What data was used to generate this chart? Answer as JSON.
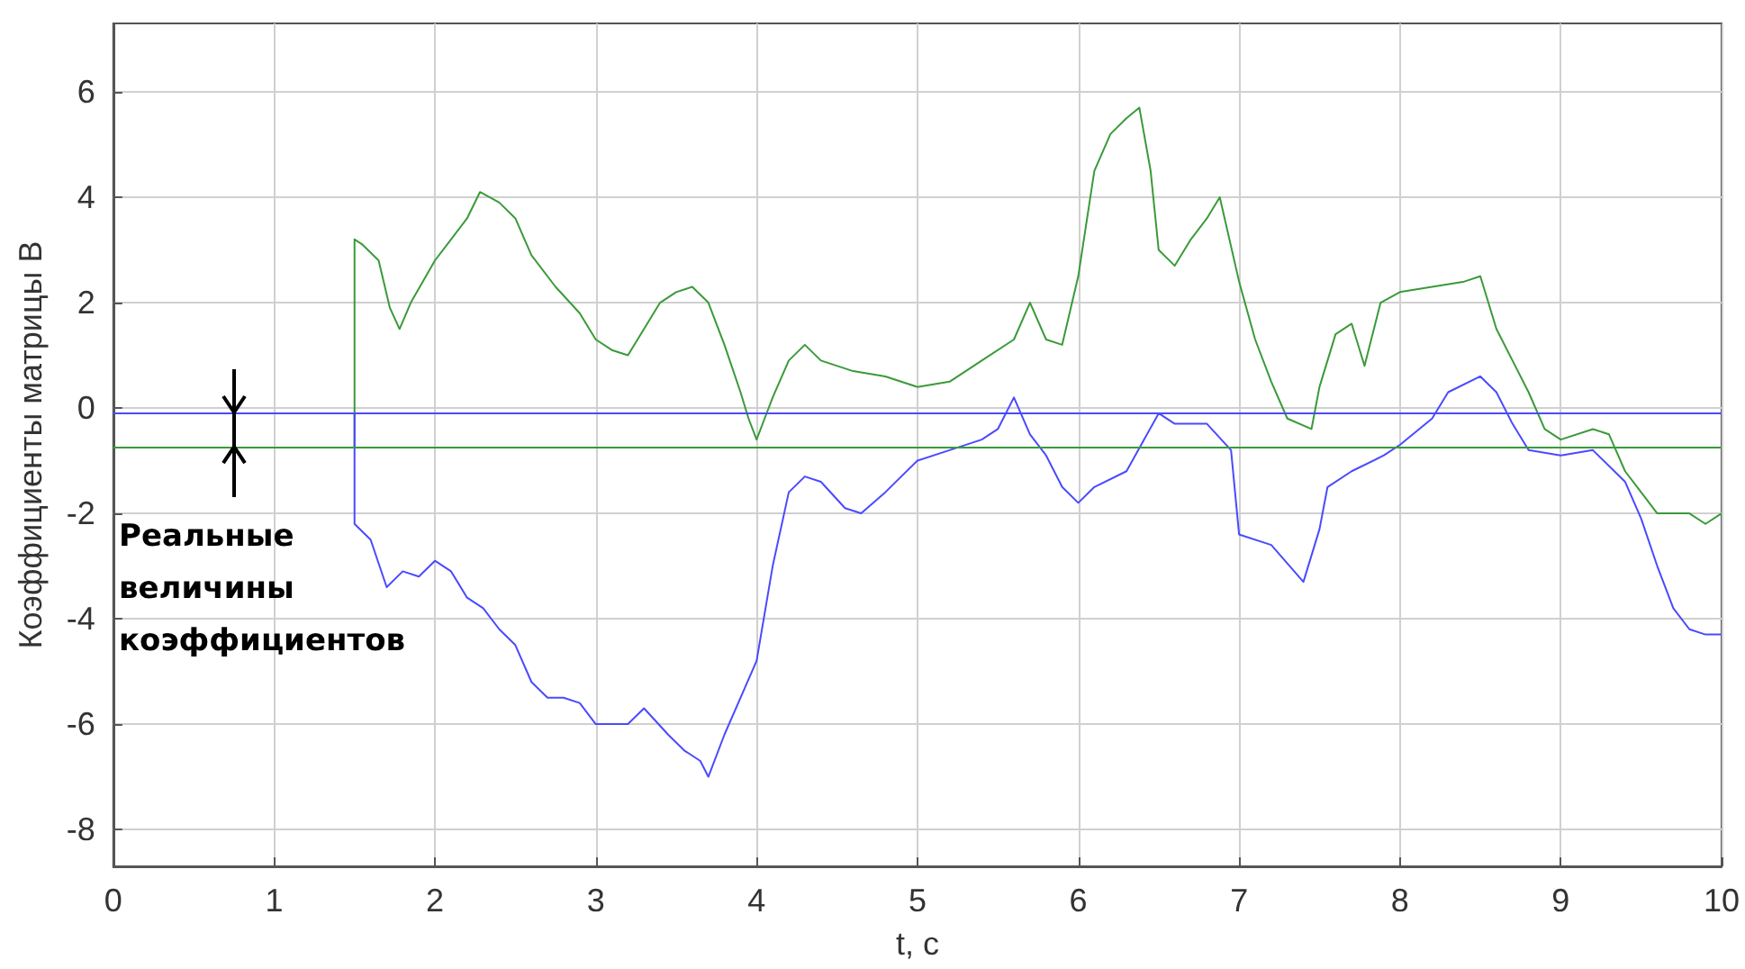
{
  "chart_data": {
    "type": "line",
    "xlabel": "t, с",
    "ylabel": "Коэффициенты матрицы В",
    "xlim": [
      0,
      10
    ],
    "ylim": [
      -8.7,
      7.3
    ],
    "xticks": [
      0,
      1,
      2,
      3,
      4,
      5,
      6,
      7,
      8,
      9,
      10
    ],
    "yticks": [
      -8,
      -6,
      -4,
      -2,
      0,
      2,
      4,
      6
    ],
    "grid": true,
    "marker": "none",
    "line_style": "solid",
    "annotations": [
      "Реальные величины коэффициентов"
    ],
    "ref_lines": [
      {
        "axis": "y",
        "value": -0.1,
        "label": null,
        "color": "#4a4aff"
      },
      {
        "axis": "y",
        "value": -0.75,
        "label": null,
        "color": "#3a9a3a"
      }
    ],
    "series": [
      {
        "color": "#3a9a3a",
        "x": [
          1.5,
          1.5,
          1.55,
          1.65,
          1.72,
          1.78,
          1.85,
          2.0,
          2.1,
          2.2,
          2.28,
          2.4,
          2.5,
          2.6,
          2.75,
          2.9,
          3.0,
          3.1,
          3.2,
          3.3,
          3.4,
          3.5,
          3.6,
          3.7,
          3.8,
          3.9,
          3.95,
          4.0,
          4.05,
          4.1,
          4.2,
          4.3,
          4.4,
          4.6,
          4.8,
          5.0,
          5.2,
          5.4,
          5.6,
          5.7,
          5.8,
          5.9,
          6.0,
          6.1,
          6.2,
          6.3,
          6.38,
          6.45,
          6.5,
          6.6,
          6.7,
          6.8,
          6.88,
          7.0,
          7.1,
          7.2,
          7.3,
          7.45,
          7.5,
          7.6,
          7.7,
          7.78,
          7.88,
          8.0,
          8.2,
          8.4,
          8.5,
          8.6,
          8.7,
          8.8,
          8.9,
          9.0,
          9.2,
          9.3,
          9.4,
          9.5,
          9.6,
          9.8,
          9.9,
          10.0
        ],
        "values": [
          -0.75,
          3.2,
          3.1,
          2.8,
          1.9,
          1.5,
          2.0,
          2.8,
          3.2,
          3.6,
          4.1,
          3.9,
          3.6,
          2.9,
          2.3,
          1.8,
          1.3,
          1.1,
          1.0,
          1.5,
          2.0,
          2.2,
          2.3,
          2.0,
          1.2,
          0.3,
          -0.2,
          -0.6,
          -0.2,
          0.2,
          0.9,
          1.2,
          0.9,
          0.7,
          0.6,
          0.4,
          0.5,
          0.9,
          1.3,
          2.0,
          1.3,
          1.2,
          2.5,
          4.5,
          5.2,
          5.5,
          5.7,
          4.5,
          3.0,
          2.7,
          3.2,
          3.6,
          4.0,
          2.4,
          1.3,
          0.5,
          -0.2,
          -0.4,
          0.4,
          1.4,
          1.6,
          0.8,
          2.0,
          2.2,
          2.3,
          2.4,
          2.5,
          1.5,
          0.9,
          0.3,
          -0.4,
          -0.6,
          -0.4,
          -0.5,
          -1.2,
          -1.6,
          -2.0,
          -2.0,
          -2.2,
          -2.0
        ]
      },
      {
        "color": "#4a4aff",
        "x": [
          1.5,
          1.5,
          1.6,
          1.7,
          1.8,
          1.9,
          2.0,
          2.1,
          2.2,
          2.3,
          2.4,
          2.5,
          2.6,
          2.7,
          2.8,
          2.9,
          3.0,
          3.2,
          3.3,
          3.45,
          3.55,
          3.65,
          3.7,
          3.8,
          3.9,
          4.0,
          4.1,
          4.2,
          4.3,
          4.4,
          4.55,
          4.65,
          4.8,
          5.0,
          5.2,
          5.4,
          5.5,
          5.6,
          5.7,
          5.8,
          5.9,
          6.0,
          6.1,
          6.3,
          6.5,
          6.6,
          6.8,
          6.95,
          7.0,
          7.2,
          7.4,
          7.5,
          7.55,
          7.7,
          7.9,
          8.0,
          8.2,
          8.3,
          8.5,
          8.6,
          8.7,
          8.8,
          9.0,
          9.2,
          9.4,
          9.5,
          9.6,
          9.7,
          9.8,
          9.9,
          10.0
        ],
        "values": [
          -0.1,
          -2.2,
          -2.5,
          -3.4,
          -3.1,
          -3.2,
          -2.9,
          -3.1,
          -3.6,
          -3.8,
          -4.2,
          -4.5,
          -5.2,
          -5.5,
          -5.5,
          -5.6,
          -6.0,
          -6.0,
          -5.7,
          -6.2,
          -6.5,
          -6.7,
          -7.0,
          -6.2,
          -5.5,
          -4.8,
          -3.0,
          -1.6,
          -1.3,
          -1.4,
          -1.9,
          -2.0,
          -1.6,
          -1.0,
          -0.8,
          -0.6,
          -0.4,
          0.2,
          -0.5,
          -0.9,
          -1.5,
          -1.8,
          -1.5,
          -1.2,
          -0.1,
          -0.3,
          -0.3,
          -0.8,
          -2.4,
          -2.6,
          -3.3,
          -2.3,
          -1.5,
          -1.2,
          -0.9,
          -0.7,
          -0.2,
          0.3,
          0.6,
          0.3,
          -0.3,
          -0.8,
          -0.9,
          -0.8,
          -1.4,
          -2.1,
          -3.0,
          -3.8,
          -4.2,
          -4.3,
          -4.3
        ]
      }
    ]
  }
}
